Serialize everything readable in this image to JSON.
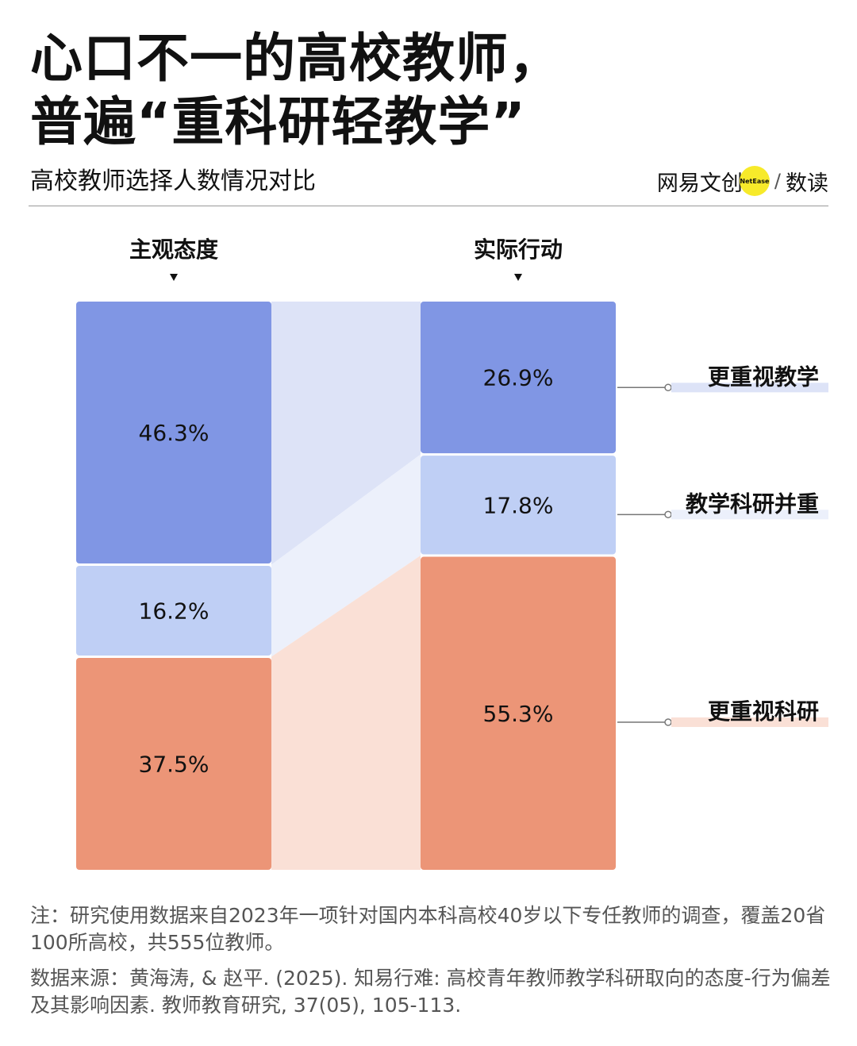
{
  "title_line1": "心口不一的高校教师，",
  "title_line2": "普遍“重科研轻教学”",
  "subtitle": "高校教师选择人数情况对比",
  "brand": {
    "name": "网易文创",
    "badge": "NetEase",
    "slash": "/",
    "sub": "数读"
  },
  "chart_data": {
    "type": "bar",
    "layout": "stacked-100",
    "categories": [
      "主观态度",
      "实际行动"
    ],
    "series": [
      {
        "name": "更重视教学",
        "values": [
          46.3,
          26.9
        ],
        "labels": [
          "46.3%",
          "26.9%"
        ],
        "color": "#8096e4",
        "band_color": "#dde3f7"
      },
      {
        "name": "教学科研并重",
        "values": [
          16.2,
          17.8
        ],
        "labels": [
          "16.2%",
          "17.8%"
        ],
        "color": "#bfcff5",
        "band_color": "#ecf0fb"
      },
      {
        "name": "更重视科研",
        "values": [
          37.5,
          55.3
        ],
        "labels": [
          "37.5%",
          "55.3%"
        ],
        "color": "#ec9577",
        "band_color": "#fae0d6"
      }
    ],
    "legend_placement": "right",
    "grid": false
  },
  "note": "注：研究使用数据来自2023年一项针对国内本科高校40岁以下专任教师的调查，覆盖20省100所高校，共555位教师。",
  "source": "数据来源：黄海涛, & 赵平. (2025). 知易行难: 高校青年教师教学科研取向的态度-行为偏差及其影响因素. 教师教育研究, 37(05), 105-113."
}
